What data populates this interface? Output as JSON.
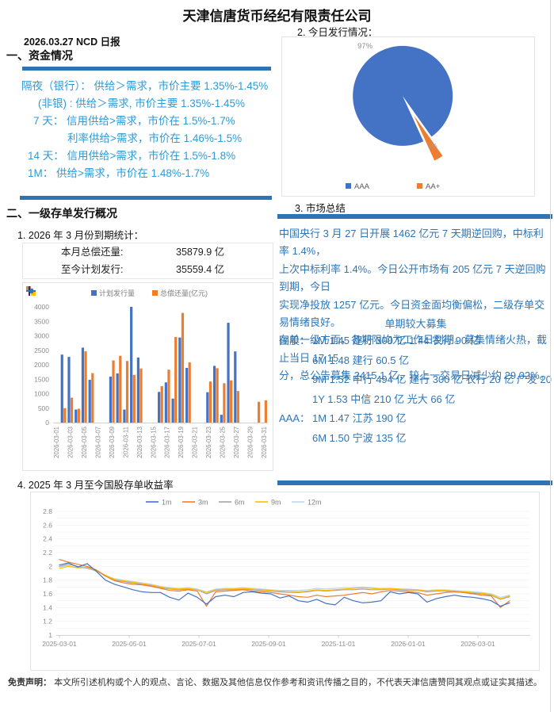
{
  "page": {
    "title": "天津信唐货币经纪有限责任公司",
    "report_label": "2026.03.27 NCD 日报",
    "disclaimer_label": "免责声明：",
    "disclaimer_text": "本文所引述机构或个人的观点、言论、数据及其他信息仅作参考和资讯传播之目的，不代表天津信唐赞同其观点或证实其描述。"
  },
  "funding": {
    "heading": "一、资金情况",
    "rates": [
      {
        "indent": 27,
        "text": "隔夜（银行）： 供给＞需求，市价主要 1.35%-1.45%"
      },
      {
        "indent": 48,
        "text": "(非银) : 供给＞需求, 市价主要 1.35%-1.45%"
      },
      {
        "indent": 42,
        "text": "7 天： 信用供给>需求，市价在 1.5%-1.7%"
      },
      {
        "indent": 85,
        "text": "利率供给>需求，市价在 1.46%-1.5%"
      },
      {
        "indent": 35,
        "text": "14 天： 信用供给>需求，市价在 1.5%-1.8%"
      },
      {
        "indent": 35,
        "text": "1M： 供给>需求，市价在 1.48%-1.7%"
      }
    ]
  },
  "issuance_today": {
    "heading": "2. 今日发行情况："
  },
  "market_summary": {
    "heading": "3. 市场总结",
    "lines": [
      "中国央行 3 月 27 日开展 1462 亿元 7 天期逆回购，中标利率 1.4%，",
      "上次中标利率 1.4%。今日公开市场有 205 亿元 7 天逆回购到期，今日",
      "实现净投放 1257 亿元。今日资金面均衡偏松，二级存单交易情绪良好。",
      "存单一级方面，各期限均为工作日到期。募集情绪火热，截止当日 17:15",
      "分，总公告募集 2415.1 亿，较上一交易日减少约 29.02%。"
    ],
    "fundraising_subhead": "单期较大募集",
    "fundraising": [
      {
        "prefix": "国股：",
        "text": "1M 1.45 建行 300 亿  1.44 农行 90 亿"
      },
      {
        "prefix": "",
        "text": "6M 1.48 建行 60.5 亿"
      },
      {
        "prefix": "",
        "text": "9M 1.52 中行 494 亿 建行 300 亿 农行 20 亿 广发 20 亿"
      },
      {
        "prefix": "",
        "text": "1Y 1.53 中信 210 亿 光大 66 亿"
      },
      {
        "prefix": "AAA：",
        "text": "1M 1.47 江苏 190 亿"
      },
      {
        "prefix": "",
        "text": "6M 1.50 宁波 135 亿"
      }
    ]
  },
  "primary_issuance": {
    "heading": "二、一级存单发行概况",
    "stat_title": "1. 2026 年 3 月份到期统计：",
    "stats": [
      {
        "label": "本月总偿还量:",
        "value": "35879.9 亿"
      },
      {
        "label": "至今计划发行:",
        "value": "35559.4 亿"
      }
    ]
  },
  "yield_section": {
    "heading": "4. 2025 年 3 月至今国股存单收益率"
  },
  "colors": {
    "divider_blue": "#2E74B5",
    "left_text_blue": "#2E9BD8",
    "right_text_blue": "#2E75B6",
    "axis_gray": "#8C8C8C",
    "legend_gray": "#7F7F7F"
  },
  "chart_data": [
    {
      "id": "pie-issuance",
      "type": "pie",
      "title": "2. 今日发行情况：",
      "labels": [
        "AAA",
        "AA+"
      ],
      "values": [
        97,
        3
      ],
      "data_labels": [
        "97%",
        "3%"
      ],
      "colors": [
        "#4472C4",
        "#ED7D31"
      ],
      "legend_position": "bottom",
      "exploded_slice": "AA+"
    },
    {
      "id": "bar-maturity",
      "type": "bar",
      "series_names": [
        "计划发行量",
        "总偿还量(亿元)"
      ],
      "series_colors": [
        "#4472C4",
        "#ED7D31"
      ],
      "y_ticks": [
        0,
        500,
        1000,
        1500,
        2000,
        2500,
        3000,
        3500,
        4000
      ],
      "ylim": [
        0,
        4000
      ],
      "x_tick_labels": [
        "2026-03-01",
        "2026-03-03",
        "2026-03-05",
        "2026-03-07",
        "2026-03-09",
        "2026-03-11",
        "2026-03-13",
        "2026-03-15",
        "2026-03-17",
        "2026-03-19",
        "2026-03-21",
        "2026-03-23",
        "2026-03-25",
        "2026-03-27",
        "2026-03-29",
        "2026-03-31"
      ],
      "days_in_month": 31,
      "days": [
        {
          "date": "2026-03-02",
          "plan": 2350,
          "repay": 500
        },
        {
          "date": "2026-03-03",
          "plan": 2270,
          "repay": 860
        },
        {
          "date": "2026-03-04",
          "plan": 450,
          "repay": 480
        },
        {
          "date": "2026-03-05",
          "plan": 2590,
          "repay": 2460
        },
        {
          "date": "2026-03-06",
          "plan": 1480,
          "repay": 1710
        },
        {
          "date": "2026-03-09",
          "plan": 1590,
          "repay": 2150
        },
        {
          "date": "2026-03-10",
          "plan": 1700,
          "repay": 2310
        },
        {
          "date": "2026-03-11",
          "plan": 450,
          "repay": 2130
        },
        {
          "date": "2026-03-12",
          "plan": 4000,
          "repay": 1650
        },
        {
          "date": "2026-03-13",
          "plan": 2250,
          "repay": 1870
        },
        {
          "date": "2026-03-16",
          "plan": 1060,
          "repay": 1260
        },
        {
          "date": "2026-03-17",
          "plan": 1390,
          "repay": 1830
        },
        {
          "date": "2026-03-18",
          "plan": 830,
          "repay": 2960
        },
        {
          "date": "2026-03-19",
          "plan": 2940,
          "repay": 3790
        },
        {
          "date": "2026-03-20",
          "plan": 1890,
          "repay": 2080
        },
        {
          "date": "2026-03-23",
          "plan": 1050,
          "repay": 1420
        },
        {
          "date": "2026-03-24",
          "plan": 1960,
          "repay": 1880
        },
        {
          "date": "2026-03-25",
          "plan": 270,
          "repay": 1360
        },
        {
          "date": "2026-03-26",
          "plan": 3450,
          "repay": 1460
        },
        {
          "date": "2026-03-27",
          "plan": 2460,
          "repay": 1090
        },
        {
          "date": "2026-03-30",
          "plan": 0,
          "repay": 720
        },
        {
          "date": "2026-03-31",
          "plan": 0,
          "repay": 770
        }
      ]
    },
    {
      "id": "line-yields",
      "type": "line",
      "title": "4. 2025 年 3 月至今国股存单收益率",
      "x_tick_labels": [
        "2025-03-01",
        "2025-05-01",
        "2025-07-01",
        "2025-09-01",
        "2025-11-01",
        "2026-01-01",
        "2026-03-01"
      ],
      "y_ticks": [
        1,
        1.2,
        1.4,
        1.6,
        1.8,
        2,
        2.2,
        2.4,
        2.6,
        2.8
      ],
      "ylim": [
        1,
        2.8
      ],
      "grid": true,
      "legend_position": "top",
      "series": [
        {
          "name": "1m",
          "color": "#4472C4",
          "values": [
            2.02,
            2.05,
            1.99,
            2.04,
            1.93,
            1.8,
            1.74,
            1.7,
            1.66,
            1.63,
            1.62,
            1.62,
            1.55,
            1.51,
            1.61,
            1.55,
            1.45,
            1.56,
            1.58,
            1.56,
            1.62,
            1.63,
            1.61,
            1.6,
            1.54,
            1.57,
            1.5,
            1.48,
            1.52,
            1.46,
            1.44,
            1.55,
            1.5,
            1.47,
            1.48,
            1.5,
            1.63,
            1.6,
            1.62,
            1.6,
            1.48,
            1.53,
            1.56,
            1.58,
            1.56,
            1.55,
            1.53,
            1.5,
            1.42,
            1.47
          ]
        },
        {
          "name": "3m",
          "color": "#ED7D31",
          "values": [
            2.1,
            2.06,
            2.03,
            2.0,
            1.95,
            1.86,
            1.79,
            1.76,
            1.74,
            1.73,
            1.71,
            1.68,
            1.65,
            1.64,
            1.66,
            1.64,
            1.42,
            1.63,
            1.64,
            1.65,
            1.66,
            1.64,
            1.63,
            1.62,
            1.6,
            1.58,
            1.56,
            1.55,
            1.58,
            1.56,
            1.57,
            1.58,
            1.6,
            1.62,
            1.6,
            1.63,
            1.65,
            1.64,
            1.63,
            1.62,
            1.58,
            1.6,
            1.62,
            1.63,
            1.62,
            1.6,
            1.58,
            1.57,
            1.4,
            1.5
          ]
        },
        {
          "name": "6m",
          "color": "#A5A5A5",
          "values": [
            2.0,
            2.03,
            2.0,
            1.98,
            1.94,
            1.86,
            1.8,
            1.78,
            1.76,
            1.74,
            1.72,
            1.69,
            1.67,
            1.66,
            1.67,
            1.66,
            1.6,
            1.65,
            1.66,
            1.66,
            1.67,
            1.66,
            1.65,
            1.64,
            1.63,
            1.62,
            1.62,
            1.63,
            1.65,
            1.64,
            1.65,
            1.66,
            1.66,
            1.67,
            1.66,
            1.66,
            1.67,
            1.66,
            1.65,
            1.65,
            1.63,
            1.64,
            1.64,
            1.63,
            1.62,
            1.61,
            1.6,
            1.58,
            1.52,
            1.56
          ]
        },
        {
          "name": "9m",
          "color": "#FFC000",
          "values": [
            1.97,
            2.0,
            1.98,
            1.99,
            1.94,
            1.87,
            1.81,
            1.79,
            1.77,
            1.75,
            1.73,
            1.7,
            1.68,
            1.67,
            1.68,
            1.66,
            1.62,
            1.66,
            1.67,
            1.67,
            1.68,
            1.67,
            1.66,
            1.65,
            1.64,
            1.64,
            1.63,
            1.64,
            1.66,
            1.65,
            1.66,
            1.67,
            1.68,
            1.69,
            1.68,
            1.67,
            1.68,
            1.67,
            1.66,
            1.66,
            1.64,
            1.65,
            1.65,
            1.64,
            1.63,
            1.62,
            1.61,
            1.59,
            1.53,
            1.57
          ]
        },
        {
          "name": "12m",
          "color": "#BDD7EE",
          "values": [
            1.99,
            2.01,
            1.98,
            1.97,
            1.93,
            1.87,
            1.82,
            1.8,
            1.78,
            1.76,
            1.74,
            1.71,
            1.69,
            1.68,
            1.69,
            1.67,
            1.63,
            1.67,
            1.68,
            1.68,
            1.69,
            1.68,
            1.67,
            1.66,
            1.65,
            1.65,
            1.65,
            1.66,
            1.68,
            1.67,
            1.68,
            1.69,
            1.69,
            1.7,
            1.69,
            1.68,
            1.68,
            1.67,
            1.67,
            1.66,
            1.65,
            1.66,
            1.66,
            1.65,
            1.64,
            1.63,
            1.62,
            1.6,
            1.55,
            1.58
          ]
        }
      ]
    }
  ]
}
